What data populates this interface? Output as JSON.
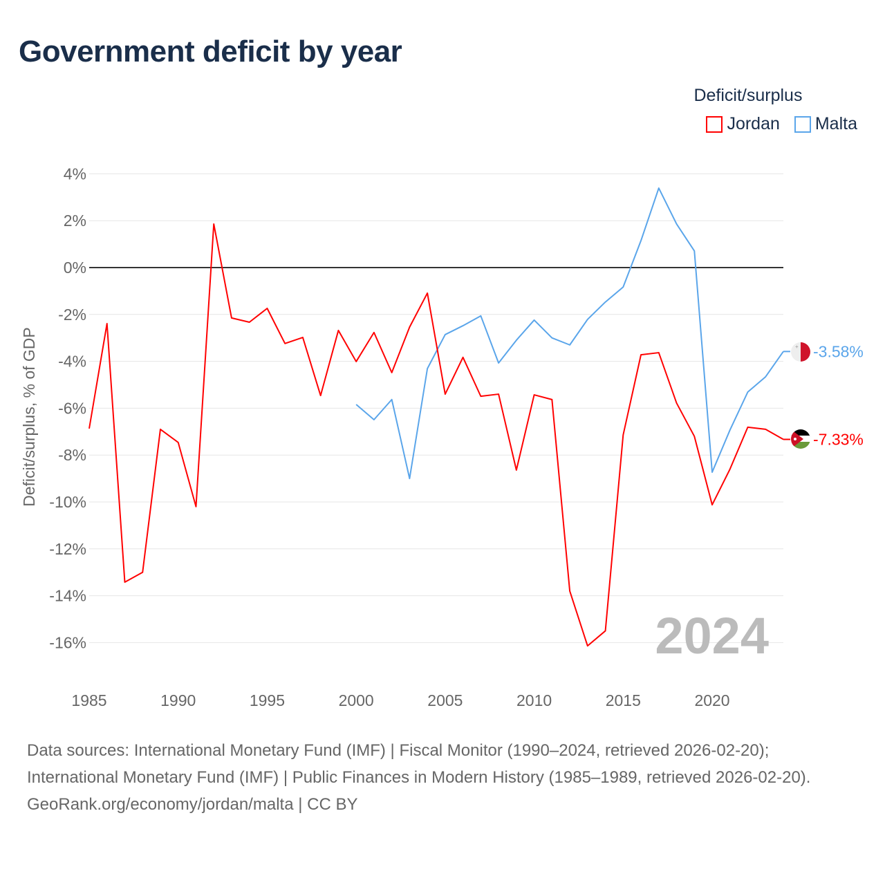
{
  "title": "Government deficit by year",
  "legend": {
    "title": "Deficit/surplus",
    "items": [
      {
        "name": "Jordan",
        "color": "#ff0000"
      },
      {
        "name": "Malta",
        "color": "#5aa5ea"
      }
    ]
  },
  "chart_data": {
    "type": "line",
    "title": "Government deficit by year",
    "ylabel": "Deficit/surplus, % of GDP",
    "xlabel": "",
    "ylim": [
      -16,
      4
    ],
    "xlim": [
      1985,
      2024
    ],
    "yticks": [
      4,
      2,
      0,
      -2,
      -4,
      -6,
      -8,
      -10,
      -12,
      -14,
      -16
    ],
    "ytick_labels": [
      "4%",
      "2%",
      "0%",
      "-2%",
      "-4%",
      "-6%",
      "-8%",
      "-10%",
      "-12%",
      "-14%",
      "-16%"
    ],
    "xticks": [
      1985,
      1990,
      1995,
      2000,
      2005,
      2010,
      2015,
      2020
    ],
    "xtick_labels": [
      "1985",
      "1990",
      "1995",
      "2000",
      "2005",
      "2010",
      "2015",
      "2020"
    ],
    "grid": true,
    "legend_position": "top-right",
    "year_watermark": "2024",
    "series": [
      {
        "name": "Jordan",
        "color": "#ff0000",
        "end_label": "-7.33%",
        "x": [
          1985,
          1986,
          1987,
          1988,
          1989,
          1990,
          1991,
          1992,
          1993,
          1994,
          1995,
          1996,
          1997,
          1998,
          1999,
          2000,
          2001,
          2002,
          2003,
          2004,
          2005,
          2006,
          2007,
          2008,
          2009,
          2010,
          2011,
          2012,
          2013,
          2014,
          2015,
          2016,
          2017,
          2018,
          2019,
          2020,
          2021,
          2022,
          2023,
          2024
        ],
        "values": [
          -6.87,
          -2.39,
          -13.42,
          -13.0,
          -6.9,
          -7.46,
          -10.2,
          1.86,
          -2.15,
          -2.33,
          -1.74,
          -3.24,
          -2.98,
          -5.46,
          -2.68,
          -4.01,
          -2.77,
          -4.48,
          -2.54,
          -1.09,
          -5.4,
          -3.83,
          -5.49,
          -5.4,
          -8.64,
          -5.43,
          -5.63,
          -13.8,
          -16.14,
          -15.5,
          -7.14,
          -3.72,
          -3.63,
          -5.78,
          -7.2,
          -10.12,
          -8.6,
          -6.81,
          -6.9,
          -7.33
        ]
      },
      {
        "name": "Malta",
        "color": "#5aa5ea",
        "end_label": "-3.58%",
        "x": [
          2000,
          2001,
          2002,
          2003,
          2004,
          2005,
          2006,
          2007,
          2008,
          2009,
          2010,
          2011,
          2012,
          2013,
          2014,
          2015,
          2016,
          2017,
          2018,
          2019,
          2020,
          2021,
          2022,
          2023,
          2024
        ],
        "values": [
          -5.84,
          -6.49,
          -5.63,
          -9.0,
          -4.31,
          -2.86,
          -2.48,
          -2.06,
          -4.07,
          -3.1,
          -2.24,
          -3.0,
          -3.3,
          -2.21,
          -1.47,
          -0.83,
          1.15,
          3.39,
          1.86,
          0.71,
          -8.73,
          -6.93,
          -5.31,
          -4.66,
          -3.58
        ]
      }
    ]
  },
  "footer": {
    "sources": "Data sources: International Monetary Fund (IMF) | Fiscal Monitor (1990–2024, retrieved 2026-02-20); International Monetary Fund (IMF) | Public Finances in Modern History (1985–1989, retrieved 2026-02-20).",
    "credit": "GeoRank.org/economy/jordan/malta | CC BY"
  }
}
